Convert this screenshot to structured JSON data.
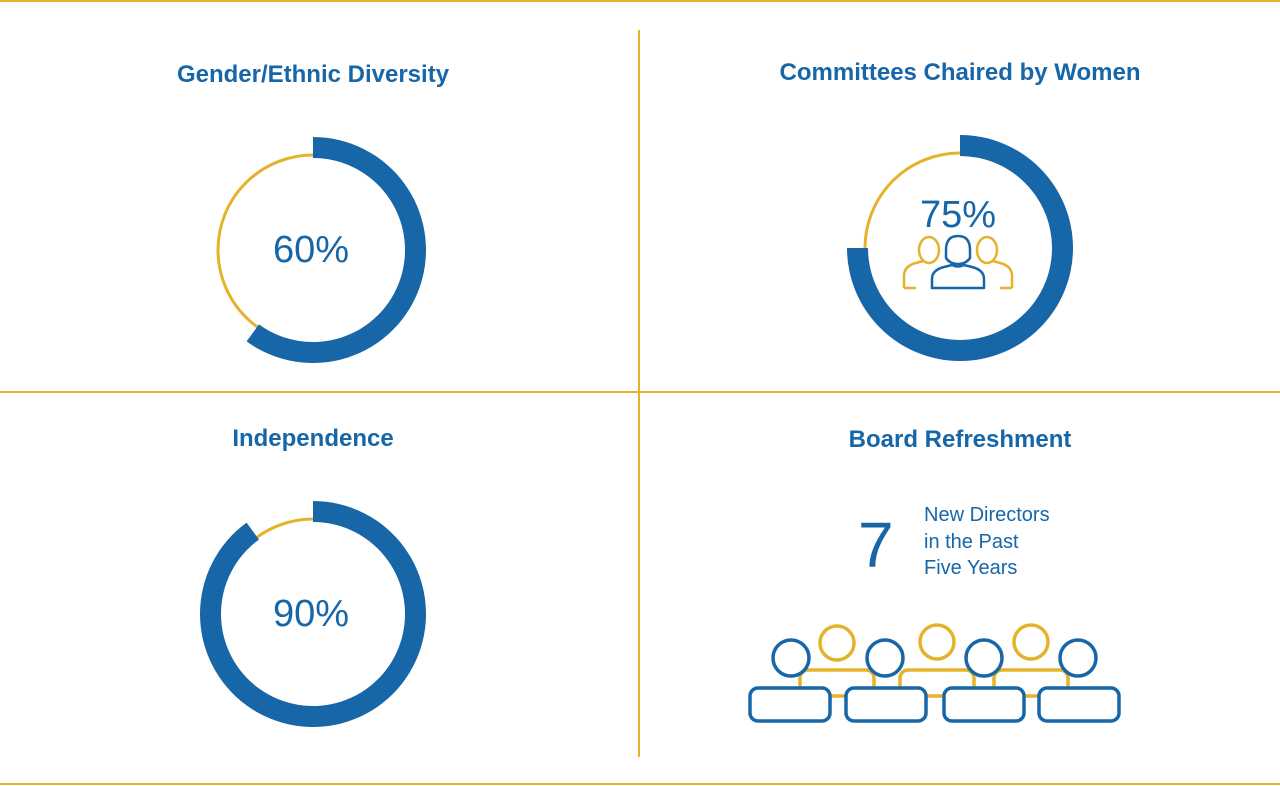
{
  "colors": {
    "blue": "#1766A8",
    "gold": "#E5B32B",
    "background": "#FFFFFF"
  },
  "chart_data": [
    {
      "type": "donut",
      "title": "Gender/Ethnic Diversity",
      "value": 60,
      "label": "60%"
    },
    {
      "type": "donut",
      "title": "Committees Chaired by Women",
      "value": 75,
      "label": "75%",
      "icon": "group-of-three-people-icon"
    },
    {
      "type": "donut",
      "title": "Independence",
      "value": 90,
      "label": "90%"
    }
  ],
  "refreshment": {
    "title": "Board Refreshment",
    "count": "7",
    "caption_lines": [
      "New Directors",
      "in the Past",
      "Five Years"
    ],
    "icon": "board-of-directors-icon"
  }
}
